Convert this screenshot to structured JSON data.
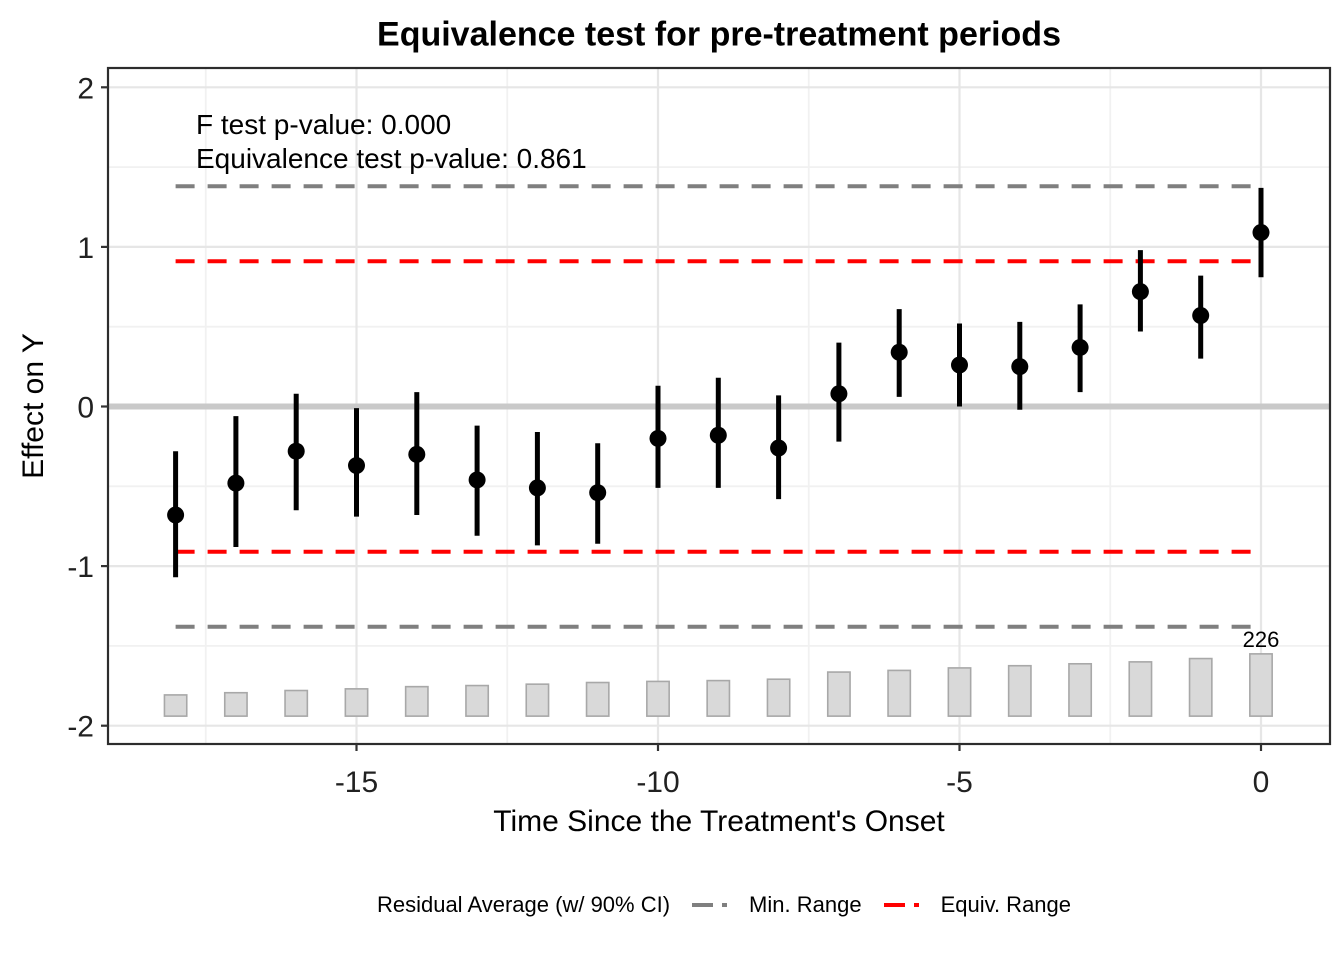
{
  "figure": {
    "title": "Equivalence test for pre-treatment periods",
    "annotation_line1": "F test p-value: 0.000",
    "annotation_line2": "Equivalence test p-value: 0.861"
  },
  "legend": {
    "residual_label": "Residual Average (w/ 90% CI)",
    "min_range_label": "Min. Range",
    "equiv_range_label": "Equiv. Range"
  },
  "colors": {
    "point": "#000000",
    "equiv_range": "#FF0000",
    "min_range": "#7F7F7F",
    "bar_fill": "#D9D9D9",
    "bar_stroke": "#A8A8A8",
    "zero_line": "#C9C9C9",
    "grid_major": "#E6E6E6",
    "grid_minor": "#F1F1F1",
    "panel_border": "#2D2D2D",
    "axis_text": "#212121"
  },
  "chart_data": {
    "type": "pointrange",
    "title": "Equivalence test for pre-treatment periods",
    "xlabel": "Time Since the Treatment's Onset",
    "ylabel": "Effect on Y",
    "xlim": [
      -19.1,
      1.15
    ],
    "ylim": [
      -2.11,
      2.12
    ],
    "x_ticks": [
      -15,
      -10,
      -5,
      0
    ],
    "y_ticks": [
      -2,
      -1,
      0,
      1,
      2
    ],
    "x_minor": [
      -17.5,
      -12.5,
      -7.5,
      -2.5
    ],
    "y_minor": [
      -1.5,
      -0.5,
      0.5,
      1.5
    ],
    "grid": true,
    "legend_position": "bottom",
    "f_test_p_value": "0.000",
    "equivalence_test_p_value": "0.861",
    "zero_line_y": 0,
    "min_range": [
      -1.38,
      1.38
    ],
    "equiv_range": [
      -0.91,
      0.91
    ],
    "range_x_extent": [
      -18,
      0
    ],
    "points": {
      "ci_level": "90%",
      "x": [
        -18,
        -17,
        -16,
        -15,
        -14,
        -13,
        -12,
        -11,
        -10,
        -9,
        -8,
        -7,
        -6,
        -5,
        -4,
        -3,
        -2,
        -1,
        0
      ],
      "estimate": [
        -0.68,
        -0.48,
        -0.28,
        -0.37,
        -0.3,
        -0.46,
        -0.51,
        -0.54,
        -0.2,
        -0.18,
        -0.26,
        0.08,
        0.34,
        0.26,
        0.25,
        0.37,
        0.72,
        0.57,
        1.09
      ],
      "ci_low": [
        -1.07,
        -0.88,
        -0.65,
        -0.69,
        -0.68,
        -0.81,
        -0.87,
        -0.86,
        -0.51,
        -0.51,
        -0.58,
        -0.22,
        0.06,
        0.0,
        -0.02,
        0.09,
        0.47,
        0.3,
        0.81
      ],
      "ci_high": [
        -0.28,
        -0.06,
        0.08,
        -0.01,
        0.09,
        -0.12,
        -0.16,
        -0.23,
        0.13,
        0.18,
        0.07,
        0.4,
        0.61,
        0.52,
        0.53,
        0.64,
        0.98,
        0.82,
        1.37
      ]
    },
    "obs_bars": {
      "x": [
        -18,
        -17,
        -16,
        -15,
        -14,
        -13,
        -12,
        -11,
        -10,
        -9,
        -8,
        -7,
        -6,
        -5,
        -4,
        -3,
        -2,
        -1,
        0
      ],
      "count_est": [
        77,
        85,
        93,
        99,
        107,
        111,
        116,
        122,
        126,
        129,
        134,
        160,
        166,
        175,
        183,
        190,
        197,
        209,
        226
      ],
      "max_count": 226,
      "max_count_label": "226",
      "labeled_x": 0,
      "baseline": -1.94,
      "max_bar_top": -1.55,
      "bar_width_x": 0.37
    }
  }
}
